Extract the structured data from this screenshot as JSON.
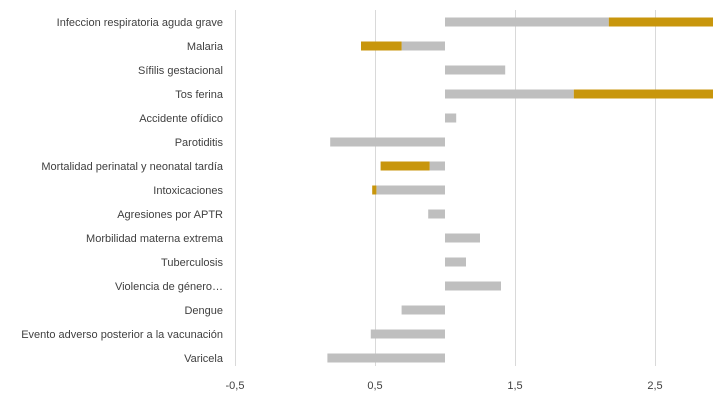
{
  "chart_data": {
    "type": "bar",
    "orientation": "horizontal",
    "stacked": true,
    "baseline": 1,
    "xlim": [
      -0.5,
      2.9
    ],
    "x_ticks": [
      "-0,5",
      "0,5",
      "1,5",
      "2,5"
    ],
    "x_tick_values": [
      -0.5,
      0.5,
      1.5,
      2.5
    ],
    "grid": true,
    "legend": "none",
    "colors": {
      "base": "#bfbfbf",
      "excess": "#c8960c"
    },
    "categories": [
      "Infeccion respiratoria aguda grave",
      "Malaria",
      "Sífilis gestacional",
      "Tos ferina",
      "Accidente ofídico",
      "Parotiditis",
      "Mortalidad perinatal y neonatal tardía",
      "Intoxicaciones",
      "Agresiones por APTR",
      "Morbilidad materna extrema",
      "Tuberculosis",
      "Violencia de género…",
      "Dengue",
      "Evento adverso posterior a la vacunación",
      "Varicela"
    ],
    "series": [
      {
        "color": "#bfbfbf",
        "ranges": [
          [
            1.0,
            2.17
          ],
          [
            0.69,
            1.0
          ],
          [
            1.0,
            1.43
          ],
          [
            1.0,
            1.92
          ],
          [
            1.0,
            1.08
          ],
          [
            0.18,
            1.0
          ],
          [
            0.89,
            1.0
          ],
          [
            0.51,
            1.0
          ],
          [
            0.88,
            1.0
          ],
          [
            1.0,
            1.25
          ],
          [
            1.0,
            1.15
          ],
          [
            1.0,
            1.4
          ],
          [
            0.69,
            1.0
          ],
          [
            0.47,
            1.0
          ],
          [
            0.16,
            1.0
          ]
        ]
      },
      {
        "color": "#c8960c",
        "ranges": [
          [
            2.17,
            2.92
          ],
          [
            0.4,
            0.69
          ],
          null,
          [
            1.92,
            2.92
          ],
          null,
          null,
          [
            0.54,
            0.89
          ],
          [
            0.48,
            0.51
          ],
          null,
          null,
          null,
          null,
          null,
          null,
          null
        ]
      }
    ]
  }
}
